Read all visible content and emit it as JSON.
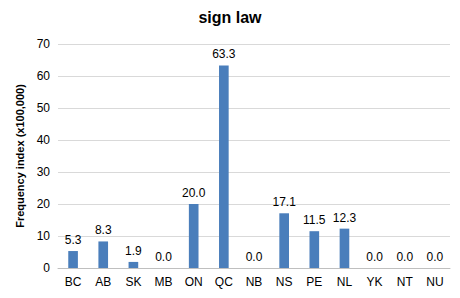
{
  "chart_data": {
    "type": "bar",
    "title": "sign law",
    "y_label": "Frequency index (x100,000)",
    "categories": [
      "BC",
      "AB",
      "SK",
      "MB",
      "ON",
      "QC",
      "NB",
      "NS",
      "PE",
      "NL",
      "YK",
      "NT",
      "NU"
    ],
    "values": [
      5.3,
      8.3,
      1.9,
      0.0,
      20.0,
      63.3,
      0.0,
      17.1,
      11.5,
      12.3,
      0.0,
      0.0,
      0.0
    ],
    "value_labels": [
      "5.3",
      "8.3",
      "1.9",
      "0.0",
      "20.0",
      "63.3",
      "0.0",
      "17.1",
      "11.5",
      "12.3",
      "0.0",
      "0.0",
      "0.0"
    ],
    "color": "#4a7ebb",
    "ylim": [
      0,
      70
    ],
    "yticks": [
      0,
      10,
      20,
      30,
      40,
      50,
      60,
      70
    ],
    "grid": true,
    "data_labels": true
  }
}
